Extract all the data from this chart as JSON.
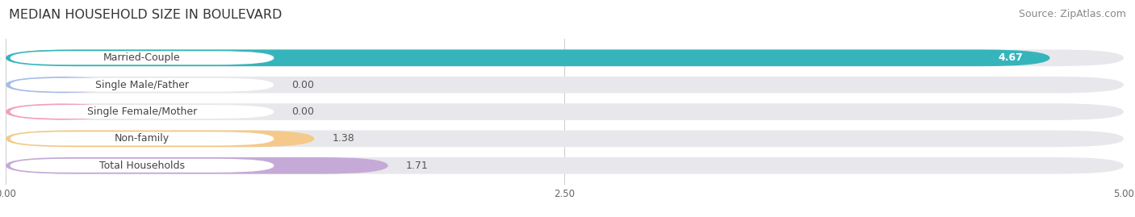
{
  "title": "MEDIAN HOUSEHOLD SIZE IN BOULEVARD",
  "source": "Source: ZipAtlas.com",
  "categories": [
    "Married-Couple",
    "Single Male/Father",
    "Single Female/Mother",
    "Non-family",
    "Total Households"
  ],
  "values": [
    4.67,
    0.0,
    0.0,
    1.38,
    1.71
  ],
  "bar_colors": [
    "#35b5bb",
    "#a8bce8",
    "#f4a0b5",
    "#f5c98a",
    "#c5aad8"
  ],
  "xlim": [
    0,
    5.0
  ],
  "xticks": [
    0.0,
    2.5,
    5.0
  ],
  "xtick_labels": [
    "0.00",
    "2.50",
    "5.00"
  ],
  "bar_height": 0.62,
  "figsize": [
    14.06,
    2.69
  ],
  "dpi": 100,
  "title_fontsize": 11.5,
  "source_fontsize": 9,
  "label_fontsize": 9,
  "value_fontsize": 9,
  "tick_fontsize": 8.5,
  "grid_color": "#cccccc",
  "background_color": "#ffffff",
  "bar_bg_color": "#e8e8ec"
}
